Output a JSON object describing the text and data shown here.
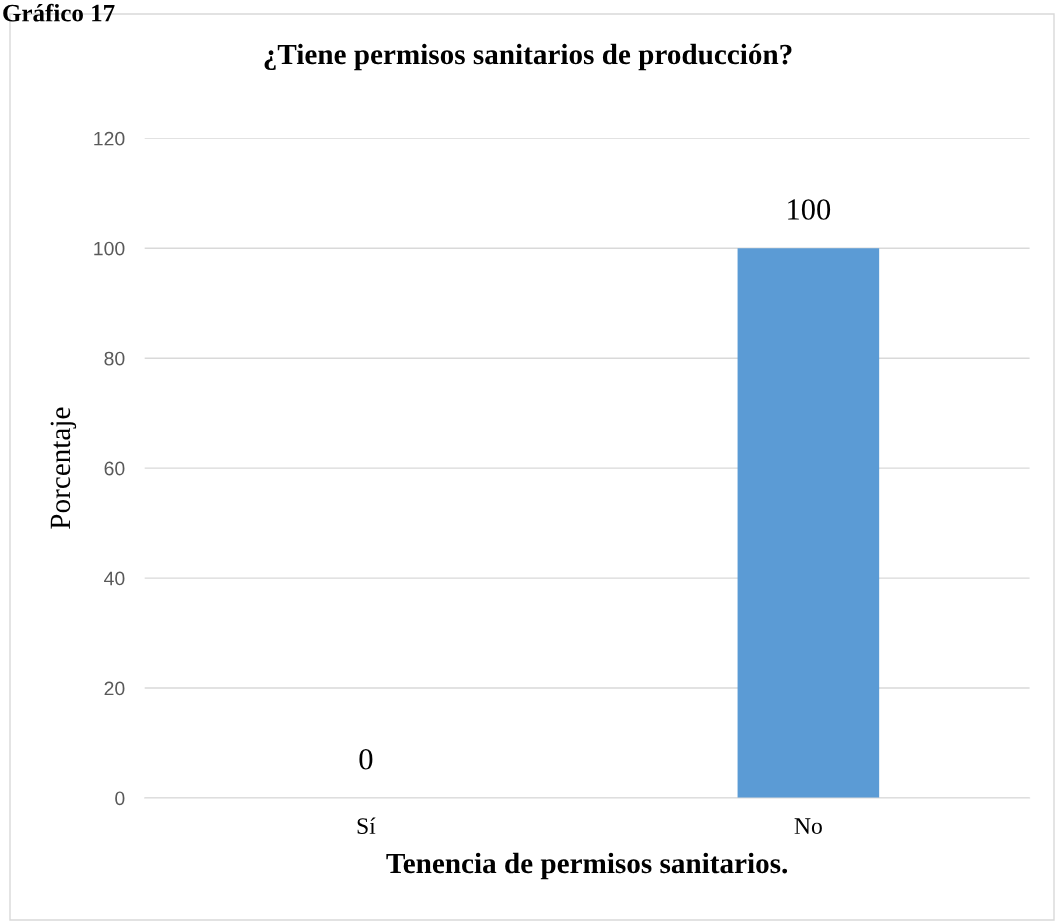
{
  "chart_data": {
    "type": "bar",
    "title": "¿Tiene permisos sanitarios de producción?",
    "xlabel": "Tenencia de permisos sanitarios.",
    "ylabel": "Porcentaje",
    "annotations": [
      "Gráfico 17"
    ],
    "categories": [
      "Sí",
      "No"
    ],
    "values": [
      0,
      100
    ],
    "color": "#5b9bd5",
    "ylim": [
      0,
      120
    ],
    "yticks": [
      0,
      20,
      40,
      60,
      80,
      100,
      120
    ],
    "grid": "y",
    "data_labels": true,
    "legend": false
  }
}
